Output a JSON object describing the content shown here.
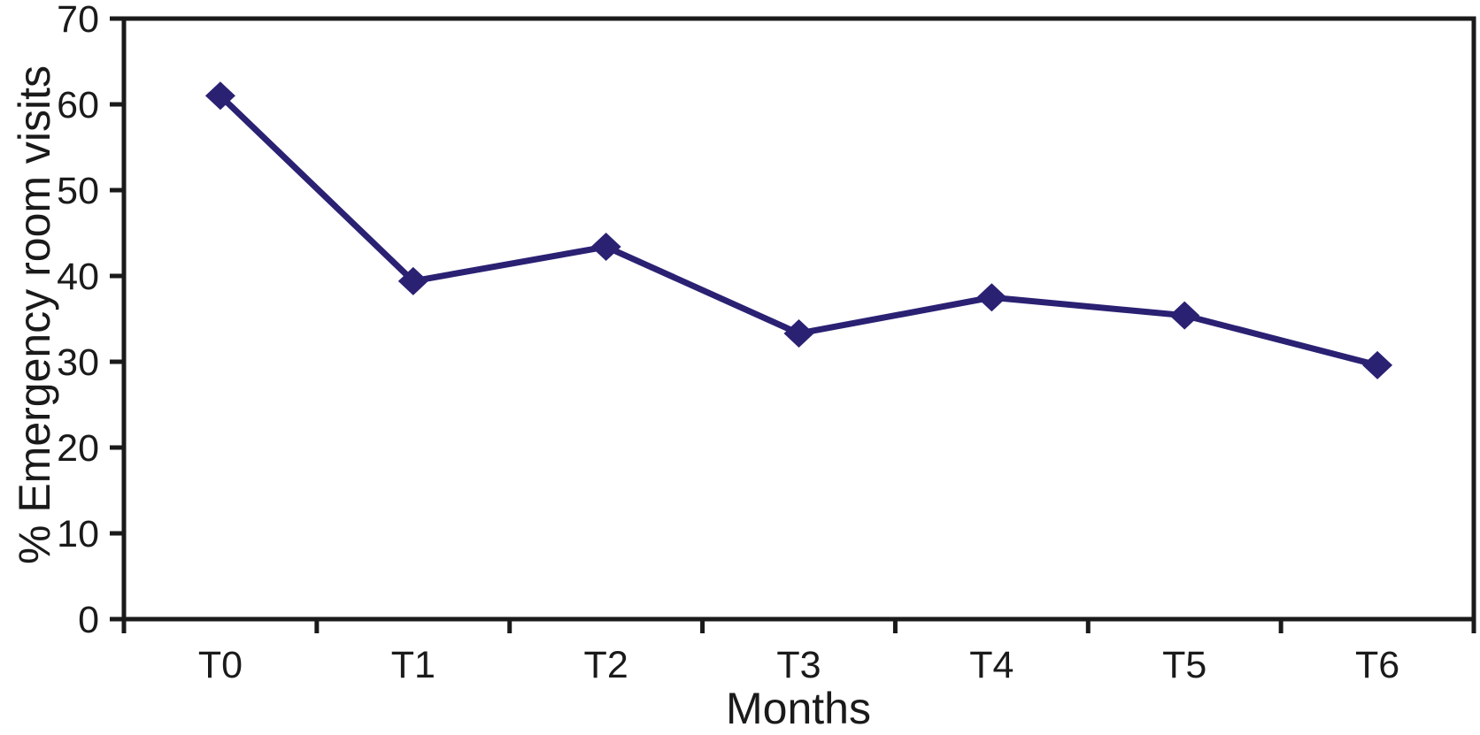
{
  "figure": {
    "background_color": "#ffffff",
    "axis_color": "#1a1a1a"
  },
  "chart_data": {
    "type": "line",
    "title": "",
    "xlabel": "Months",
    "ylabel": "% Emergency room visits",
    "categories": [
      "T0",
      "T1",
      "T2",
      "T3",
      "T4",
      "T5",
      "T6"
    ],
    "series": [
      {
        "name": "% Emergency room visits",
        "values": [
          61.0,
          39.4,
          43.4,
          33.3,
          37.5,
          35.4,
          29.6
        ],
        "color": "#2a2173",
        "marker": "diamond",
        "line_width": 7
      }
    ],
    "ylim": [
      0,
      70
    ],
    "yticks": [
      0,
      10,
      20,
      30,
      40,
      50,
      60,
      70
    ],
    "grid": false,
    "legend": false,
    "plot_border": true,
    "tick_direction": "out"
  }
}
